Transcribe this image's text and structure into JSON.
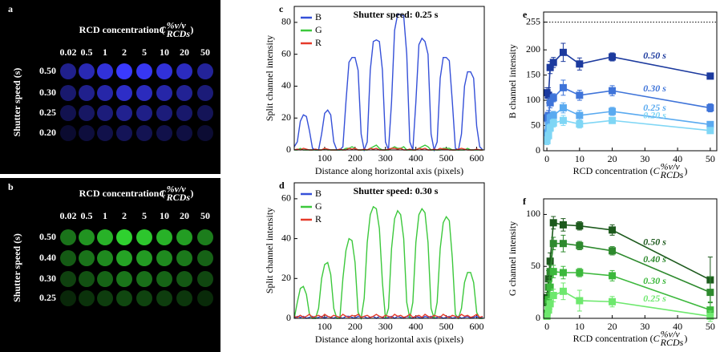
{
  "panels": [
    {
      "label": "a",
      "title_parts": [
        "RCD concentration (",
        "C",
        "%v/v",
        "RCDs",
        ")"
      ],
      "columns": [
        "0.02",
        "0.5",
        "1",
        "2",
        "5",
        "10",
        "20",
        "50"
      ],
      "rows": [
        "0.50",
        "0.30",
        "0.25",
        "0.20"
      ],
      "row_axis": "Shutter speed (s)",
      "color": "#3a3aff"
    },
    {
      "label": "b",
      "title_parts": [
        "RCD concentration (",
        "C",
        "%v/v",
        "RCDs",
        ")"
      ],
      "columns": [
        "0.02",
        "0.5",
        "1",
        "2",
        "5",
        "10",
        "20",
        "50"
      ],
      "rows": [
        "0.50",
        "0.40",
        "0.30",
        "0.25"
      ],
      "row_axis": "Shutter speed (s)",
      "color": "#2fd12f"
    }
  ],
  "chart_data": [
    {
      "type": "line",
      "label": "c",
      "annotation": "Shutter speed: 0.25 s",
      "ylabel": "Split channel intensity",
      "xlabel": "Distance along horizontal axis (pixels)",
      "legend": "upper left",
      "xlim": [
        0,
        625
      ],
      "xticks": [
        100,
        200,
        300,
        400,
        500,
        600
      ],
      "ylim": [
        0,
        90
      ],
      "yticks": [
        0,
        20,
        40,
        60,
        80
      ],
      "x": [
        0,
        10,
        20,
        30,
        40,
        50,
        60,
        70,
        80,
        90,
        100,
        110,
        120,
        130,
        140,
        150,
        160,
        170,
        180,
        190,
        200,
        210,
        220,
        230,
        240,
        250,
        260,
        270,
        280,
        290,
        300,
        310,
        320,
        330,
        340,
        350,
        360,
        370,
        380,
        390,
        400,
        410,
        420,
        430,
        440,
        450,
        460,
        470,
        480,
        490,
        500,
        510,
        520,
        530,
        540,
        550,
        560,
        570,
        580,
        590,
        600,
        610,
        620
      ],
      "series": [
        {
          "name": "B",
          "color": "#3550d8",
          "values": [
            2,
            5,
            18,
            22,
            21,
            12,
            1,
            0,
            0,
            10,
            23,
            25,
            22,
            5,
            0,
            0,
            2,
            30,
            55,
            58,
            58,
            50,
            10,
            0,
            5,
            50,
            68,
            69,
            68,
            50,
            5,
            0,
            30,
            75,
            85,
            85,
            84,
            60,
            5,
            0,
            30,
            66,
            70,
            68,
            60,
            10,
            0,
            5,
            45,
            58,
            58,
            56,
            30,
            1,
            0,
            10,
            40,
            49,
            49,
            45,
            15,
            2,
            0
          ]
        },
        {
          "name": "G",
          "color": "#3cc83c",
          "values": [
            0,
            0,
            1,
            0,
            0,
            0,
            0,
            0,
            0,
            0,
            1,
            0,
            0,
            0,
            0,
            0,
            0,
            1,
            1,
            2,
            1,
            0,
            0,
            0,
            0,
            1,
            2,
            3,
            1,
            0,
            0,
            0,
            1,
            2,
            1,
            1,
            2,
            0,
            0,
            0,
            0,
            1,
            2,
            3,
            2,
            0,
            0,
            0,
            0,
            1,
            1,
            1,
            0,
            0,
            0,
            0,
            0,
            1,
            0,
            0,
            0,
            0,
            0
          ]
        },
        {
          "name": "R",
          "color": "#e53a2a",
          "values": [
            0,
            0.5,
            0,
            1,
            0.5,
            0,
            0,
            0.5,
            0,
            0,
            1,
            0.5,
            0,
            0,
            0,
            0.5,
            0,
            0,
            1,
            0.5,
            1,
            0,
            0,
            0.5,
            0,
            1,
            0.5,
            1,
            0,
            0,
            0,
            0.5,
            1,
            1,
            0.5,
            1,
            0,
            0,
            0.5,
            0,
            0,
            1,
            0.5,
            1,
            0,
            0,
            0.5,
            0,
            1,
            0.5,
            0.5,
            0,
            0,
            0,
            0.5,
            1,
            0.5,
            0,
            0,
            0,
            0.5,
            0,
            0
          ]
        }
      ]
    },
    {
      "type": "line",
      "label": "d",
      "annotation": "Shutter speed: 0.30 s",
      "ylabel": "Split channel intensity",
      "xlabel": "Distance along horizontal axis (pixels)",
      "legend": "upper left",
      "xlim": [
        0,
        625
      ],
      "xticks": [
        100,
        200,
        300,
        400,
        500,
        600
      ],
      "ylim": [
        0,
        68
      ],
      "yticks": [
        0,
        20,
        40,
        60
      ],
      "x": [
        0,
        10,
        20,
        30,
        40,
        50,
        60,
        70,
        80,
        90,
        100,
        110,
        120,
        130,
        140,
        150,
        160,
        170,
        180,
        190,
        200,
        210,
        220,
        230,
        240,
        250,
        260,
        270,
        280,
        290,
        300,
        310,
        320,
        330,
        340,
        350,
        360,
        370,
        380,
        390,
        400,
        410,
        420,
        430,
        440,
        450,
        460,
        470,
        480,
        490,
        500,
        510,
        520,
        530,
        540,
        550,
        560,
        570,
        580,
        590,
        600,
        610,
        620
      ],
      "series": [
        {
          "name": "B",
          "color": "#3550d8",
          "values": [
            0,
            1,
            0.5,
            1,
            0,
            0.5,
            1,
            0,
            0.5,
            1,
            0,
            1,
            0.5,
            0,
            1,
            0.5,
            0,
            1,
            1,
            0.5,
            0,
            1,
            0.5,
            1,
            0,
            0.5,
            1,
            0,
            1,
            0.5,
            0,
            0.5,
            1,
            0,
            1,
            0.5,
            0,
            1,
            0.5,
            0,
            1,
            0.5,
            0,
            1,
            0.5,
            1,
            0,
            0.5,
            1,
            0,
            0.5,
            1,
            0,
            0.5,
            1,
            0,
            0.5,
            1,
            0,
            0.5,
            1,
            0,
            0.5
          ]
        },
        {
          "name": "G",
          "color": "#3cc83c",
          "values": [
            0,
            8,
            15,
            16,
            12,
            2,
            0,
            0,
            5,
            20,
            27,
            28,
            22,
            5,
            0,
            0,
            20,
            34,
            40,
            39,
            28,
            3,
            0,
            10,
            38,
            52,
            56,
            55,
            45,
            18,
            0,
            5,
            35,
            50,
            54,
            52,
            40,
            8,
            0,
            8,
            38,
            52,
            55,
            53,
            38,
            5,
            0,
            8,
            35,
            48,
            51,
            49,
            30,
            2,
            0,
            5,
            18,
            23,
            23,
            18,
            3,
            0,
            0
          ]
        },
        {
          "name": "R",
          "color": "#e53a2a",
          "values": [
            1,
            0.5,
            1.5,
            0.5,
            1,
            2,
            0.5,
            1,
            1.5,
            0.5,
            2,
            1,
            0.5,
            1.5,
            1,
            0.5,
            2,
            1,
            0.5,
            1.5,
            1,
            2,
            0.5,
            1,
            1.5,
            0.5,
            1,
            2,
            1,
            0.5,
            1.5,
            1,
            0.5,
            2,
            1,
            1.5,
            0.5,
            1,
            2,
            0.5,
            1,
            1.5,
            0.5,
            2,
            1,
            0.5,
            1.5,
            1,
            0.5,
            2,
            1,
            0.5,
            1.5,
            1,
            0.5,
            2,
            1,
            1.5,
            0.5,
            1,
            2,
            0.5,
            1
          ]
        }
      ]
    },
    {
      "type": "line",
      "label": "e",
      "marker": "square",
      "series_labels": "inline",
      "ylabel": "B channel intensity",
      "xlabel_parts": [
        "RCD concentration (",
        "C",
        "%v/v",
        "RCDs",
        ")"
      ],
      "xlim": [
        -1,
        52
      ],
      "xticks": [
        0,
        10,
        20,
        30,
        40,
        50
      ],
      "ylim": [
        0,
        275
      ],
      "yticks": [
        0,
        50,
        100,
        150,
        200,
        255
      ],
      "hline": 255,
      "x": [
        0.02,
        0.5,
        1,
        2,
        5,
        10,
        20,
        50
      ],
      "series": [
        {
          "name": "0.50 s",
          "color": "#1c3a9e",
          "values": [
            115,
            110,
            165,
            175,
            195,
            172,
            186,
            148
          ],
          "errors": [
            10,
            15,
            12,
            10,
            18,
            12,
            8,
            5
          ]
        },
        {
          "name": "0.30 s",
          "color": "#3f74d9",
          "values": [
            65,
            70,
            95,
            105,
            125,
            110,
            119,
            85
          ],
          "errors": [
            8,
            10,
            10,
            8,
            15,
            10,
            10,
            8
          ]
        },
        {
          "name": "0.25 s",
          "color": "#5aaaf0",
          "values": [
            35,
            50,
            65,
            70,
            85,
            70,
            78,
            52
          ],
          "errors": [
            8,
            8,
            8,
            8,
            10,
            10,
            8,
            6
          ]
        },
        {
          "name": "0.20 s",
          "color": "#7fd6f5",
          "values": [
            20,
            30,
            45,
            55,
            60,
            53,
            60,
            40
          ],
          "errors": [
            8,
            8,
            8,
            8,
            10,
            8,
            6,
            5
          ]
        }
      ]
    },
    {
      "type": "line",
      "label": "f",
      "marker": "square",
      "series_labels": "inline",
      "ylabel": "G channel intensity",
      "xlabel_parts": [
        "RCD concentration (",
        "C",
        "%v/v",
        "RCDs",
        ")"
      ],
      "xlim": [
        -1,
        52
      ],
      "xticks": [
        0,
        10,
        20,
        30,
        40,
        50
      ],
      "ylim": [
        0,
        115
      ],
      "yticks": [
        0,
        50,
        100
      ],
      "x": [
        0.02,
        0.5,
        1,
        2,
        5,
        10,
        20,
        50
      ],
      "series": [
        {
          "name": "0.50 s",
          "color": "#1d5a1d",
          "values": [
            20,
            38,
            55,
            92,
            90,
            89,
            85,
            37
          ],
          "errors": [
            5,
            8,
            8,
            6,
            6,
            4,
            5,
            22
          ]
        },
        {
          "name": "0.40 s",
          "color": "#2e8a2e",
          "values": [
            15,
            30,
            45,
            72,
            72,
            70,
            65,
            25
          ],
          "errors": [
            5,
            6,
            6,
            6,
            8,
            4,
            4,
            15
          ]
        },
        {
          "name": "0.30 s",
          "color": "#3cb83c",
          "values": [
            5,
            18,
            30,
            45,
            44,
            44,
            41,
            8
          ],
          "errors": [
            5,
            6,
            6,
            6,
            6,
            4,
            5,
            8
          ]
        },
        {
          "name": "0.25 s",
          "color": "#6ee86e",
          "values": [
            2,
            8,
            14,
            22,
            26,
            17,
            16,
            2
          ],
          "errors": [
            2,
            4,
            5,
            6,
            8,
            10,
            5,
            5
          ]
        }
      ]
    }
  ]
}
